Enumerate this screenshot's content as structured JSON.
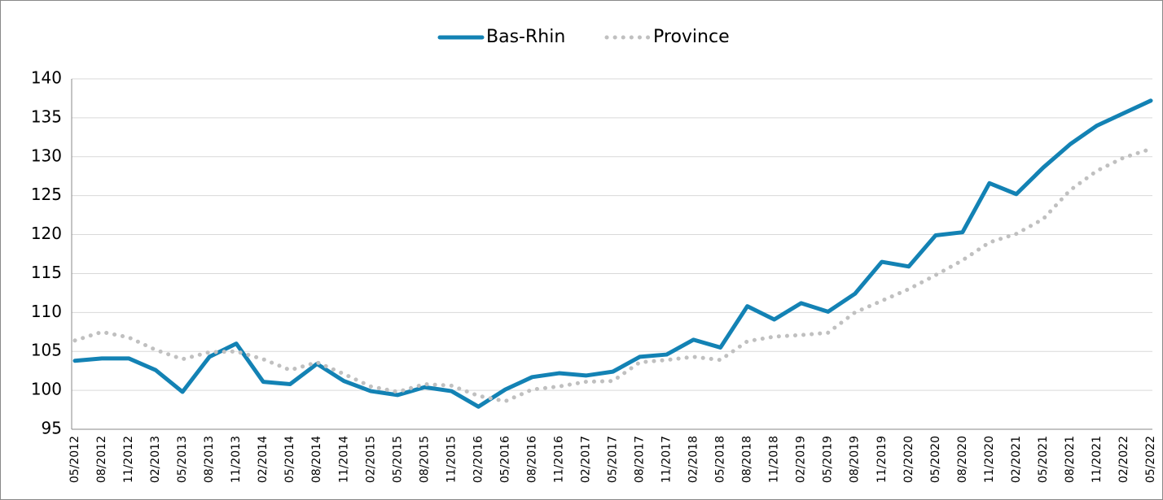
{
  "chart_data": {
    "type": "line",
    "categories": [
      "05/2012",
      "08/2012",
      "11/2012",
      "02/2013",
      "05/2013",
      "08/2013",
      "11/2013",
      "02/2014",
      "05/2014",
      "08/2014",
      "11/2014",
      "02/2015",
      "05/2015",
      "08/2015",
      "11/2015",
      "02/2016",
      "05/2016",
      "08/2016",
      "11/2016",
      "02/2017",
      "05/2017",
      "08/2017",
      "11/2017",
      "02/2018",
      "05/2018",
      "08/2018",
      "11/2018",
      "02/2019",
      "05/2019",
      "08/2019",
      "11/2019",
      "02/2020",
      "05/2020",
      "08/2020",
      "11/2020",
      "02/2021",
      "05/2021",
      "08/2021",
      "11/2021",
      "02/2022",
      "05/2022"
    ],
    "series": [
      {
        "name": "Bas-Rhin",
        "color": "#1382b4",
        "style": "solid",
        "values": [
          103.8,
          104.1,
          104.1,
          102.6,
          99.8,
          104.3,
          106.0,
          101.1,
          100.8,
          103.4,
          101.2,
          99.9,
          99.4,
          100.4,
          99.9,
          97.9,
          100.1,
          101.7,
          102.2,
          101.9,
          102.4,
          104.3,
          104.6,
          106.5,
          105.5,
          110.8,
          109.1,
          111.2,
          110.1,
          112.4,
          116.5,
          115.9,
          119.9,
          120.3,
          126.6,
          125.2,
          128.6,
          131.6,
          134.0,
          135.6,
          137.2
        ]
      },
      {
        "name": "Province",
        "color": "#c0c0c0",
        "style": "dotted",
        "values": [
          106.4,
          107.5,
          106.8,
          105.2,
          104.0,
          104.9,
          105.0,
          104.0,
          102.6,
          103.6,
          102.1,
          100.5,
          99.8,
          100.8,
          100.6,
          99.3,
          98.6,
          100.1,
          100.5,
          101.1,
          101.2,
          103.6,
          103.9,
          104.3,
          103.9,
          106.3,
          106.9,
          107.1,
          107.4,
          110.0,
          111.5,
          113.0,
          114.8,
          116.7,
          119.0,
          120.1,
          122.0,
          125.7,
          128.2,
          129.9,
          131.0
        ]
      }
    ],
    "ylim": [
      95,
      140
    ],
    "yticks": [
      95,
      100,
      105,
      110,
      115,
      120,
      125,
      130,
      135,
      140
    ],
    "grid": true,
    "legend": "top"
  }
}
